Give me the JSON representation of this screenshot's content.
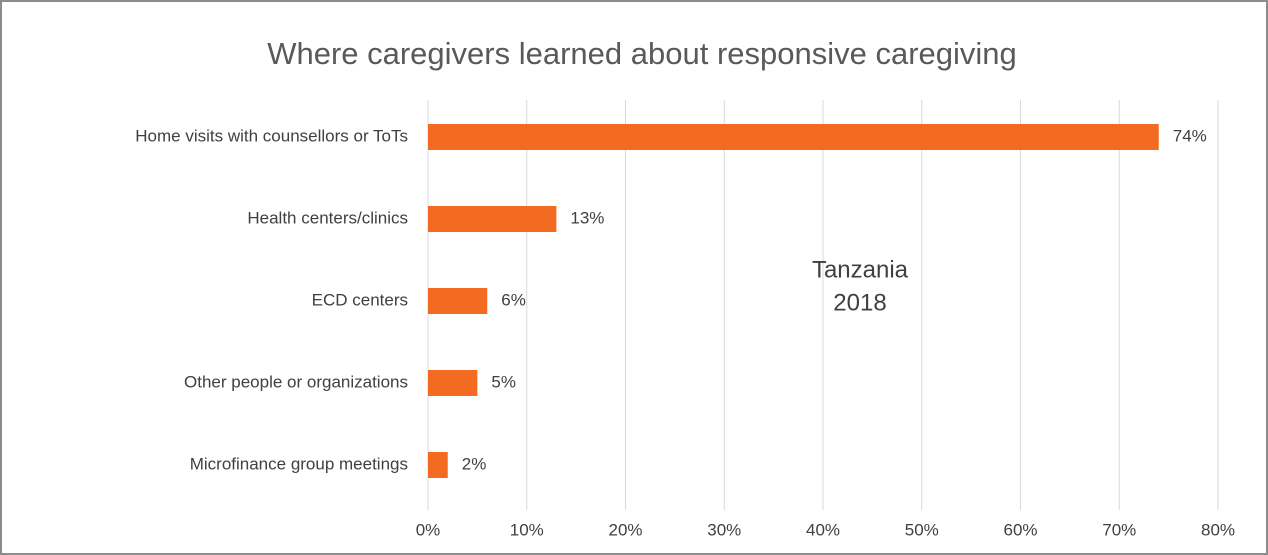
{
  "chart_data": {
    "type": "bar",
    "orientation": "horizontal",
    "title": "Where caregivers learned about responsive caregiving",
    "annotation": [
      "Tanzania",
      "2018"
    ],
    "categories": [
      "Home visits with counsellors or ToTs",
      "Health centers/clinics",
      "ECD centers",
      "Other people or organizations",
      "Microfinance group meetings"
    ],
    "values": [
      74,
      13,
      6,
      5,
      2
    ],
    "value_labels": [
      "74%",
      "13%",
      "6%",
      "5%",
      "2%"
    ],
    "color": "#f26b21",
    "xlim": [
      0,
      80
    ],
    "xticks": [
      {
        "value": 0,
        "label": "0%"
      },
      {
        "value": 10,
        "label": "10%"
      },
      {
        "value": 20,
        "label": "20%"
      },
      {
        "value": 30,
        "label": "30%"
      },
      {
        "value": 40,
        "label": "40%"
      },
      {
        "value": 50,
        "label": "50%"
      },
      {
        "value": 60,
        "label": "60%"
      },
      {
        "value": 70,
        "label": "70%"
      },
      {
        "value": 80,
        "label": "80%"
      }
    ],
    "grid": true
  }
}
